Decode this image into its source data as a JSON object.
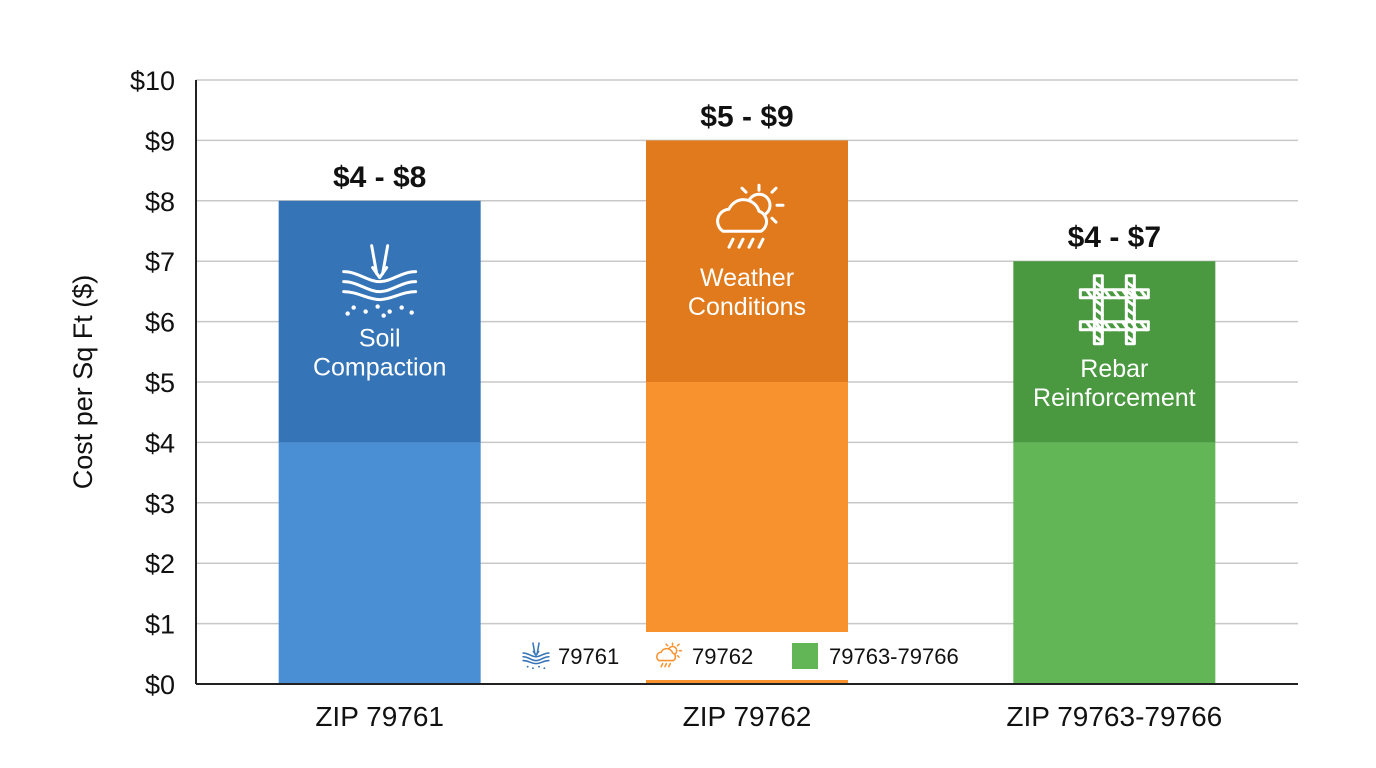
{
  "chart_data": {
    "type": "bar",
    "ylabel": "Cost per Sq Ft ($)",
    "ylim": [
      0,
      10
    ],
    "yticks": [
      "$0",
      "$1",
      "$2",
      "$3",
      "$4",
      "$5",
      "$6",
      "$7",
      "$8",
      "$9",
      "$10"
    ],
    "grid": true,
    "categories": [
      "ZIP 79761",
      "ZIP 79762",
      "ZIP 79763-79766"
    ],
    "ranges": [
      {
        "low": 4,
        "high": 8,
        "label": "$4 - $8",
        "factor": [
          "Soil",
          "Compaction"
        ],
        "icon": "soil-compaction-icon",
        "color_light": "#4a8fd4",
        "color_dark": "#3574b6"
      },
      {
        "low": 5,
        "high": 9,
        "label": "$5 - $9",
        "factor": [
          "Weather",
          "Conditions"
        ],
        "icon": "weather-icon",
        "color_light": "#f7922e",
        "color_dark": "#e07a1c"
      },
      {
        "low": 4,
        "high": 7,
        "label": "$4 - $7",
        "factor": [
          "Rebar",
          "Reinforcement"
        ],
        "icon": "rebar-grid-icon",
        "color_light": "#62b655",
        "color_dark": "#4a9940"
      }
    ],
    "legend": {
      "position": "bottom-center",
      "entries": [
        {
          "label": "79761",
          "icon": "soil-compaction-icon",
          "color": "#3574b6"
        },
        {
          "label": "79762",
          "icon": "weather-icon",
          "color": "#f7922e"
        },
        {
          "label": "79763-79766",
          "icon": "color-swatch",
          "color": "#62b655"
        }
      ]
    }
  }
}
